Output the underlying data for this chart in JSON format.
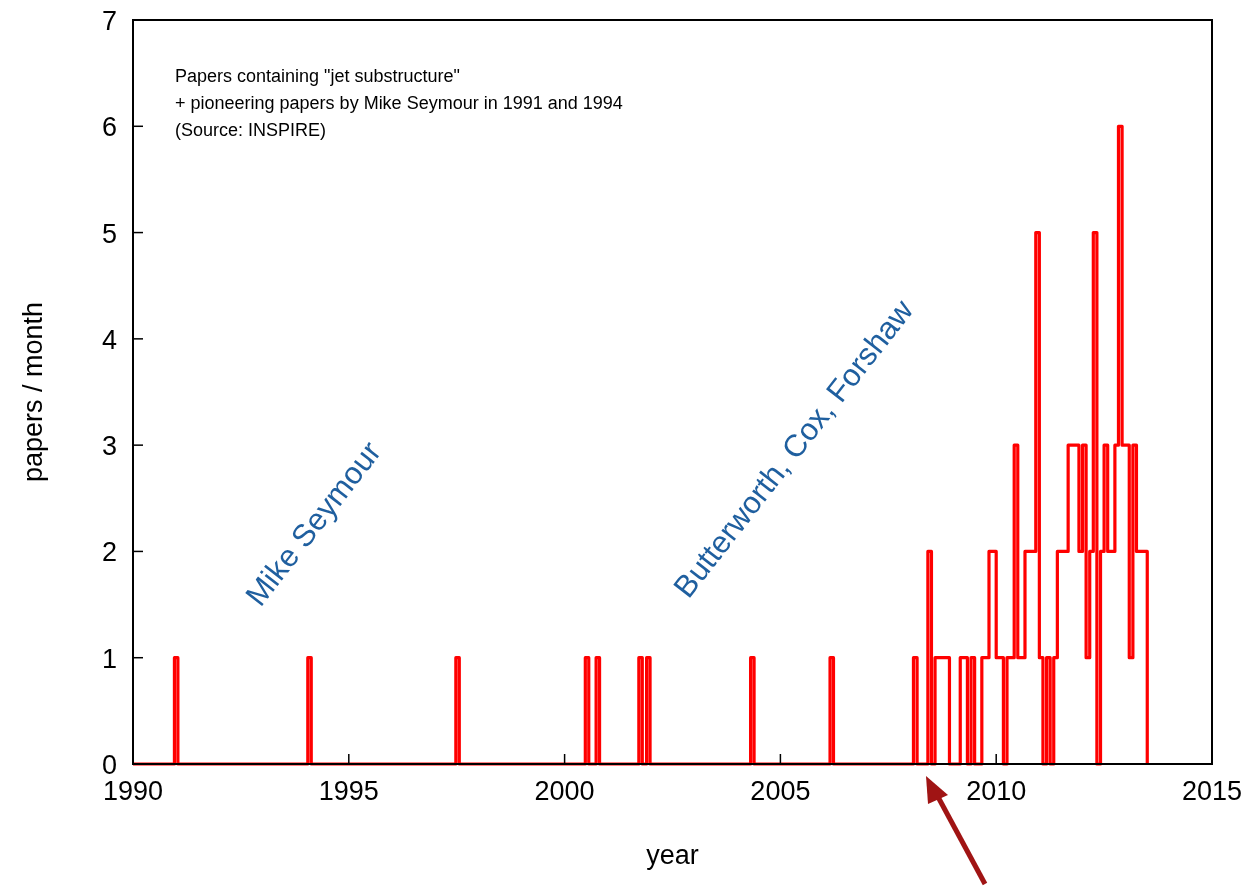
{
  "chart_data": {
    "type": "step",
    "xlabel": "year",
    "ylabel": "papers / month",
    "xlim": [
      1990,
      2015
    ],
    "xticks": [
      1990,
      1995,
      2000,
      2005,
      2010,
      2015
    ],
    "ylim": [
      0,
      7
    ],
    "yticks": [
      0,
      1,
      2,
      3,
      4,
      5,
      6,
      7
    ],
    "annotations": [
      "Papers containing \"jet substructure\"",
      "+ pioneering papers by Mike Seymour in 1991 and 1994",
      "(Source: INSPIRE)",
      "Mike Seymour",
      "Butterworth, Cox, Forshaw"
    ],
    "series": [
      {
        "color": "#ff0000",
        "x": [
          1990,
          1990.96,
          1991.04,
          1994.05,
          1994.13,
          1997.48,
          1997.56,
          2000.48,
          2000.56,
          2000.73,
          2000.81,
          2001.72,
          2001.8,
          2001.9,
          2001.98,
          2004.31,
          2004.39,
          2006.15,
          2006.23,
          2008,
          2008.083,
          2008.167,
          2008.25,
          2008.333,
          2008.417,
          2008.5,
          2008.583,
          2008.667,
          2008.75,
          2008.833,
          2008.917,
          2009,
          2009.083,
          2009.167,
          2009.25,
          2009.333,
          2009.417,
          2009.5,
          2009.583,
          2009.667,
          2009.75,
          2009.833,
          2009.917,
          2010,
          2010.083,
          2010.167,
          2010.25,
          2010.333,
          2010.417,
          2010.5,
          2010.583,
          2010.667,
          2010.75,
          2010.833,
          2010.917,
          2011,
          2011.083,
          2011.167,
          2011.25,
          2011.333,
          2011.417,
          2011.5,
          2011.583,
          2011.667,
          2011.75,
          2011.833,
          2011.917,
          2012,
          2012.083,
          2012.167,
          2012.25,
          2012.333,
          2012.417,
          2012.5,
          2012.583,
          2012.667,
          2012.75,
          2012.833,
          2012.917,
          2013,
          2013.083,
          2013.167,
          2013.25,
          2013.333,
          2013.417,
          2013.5
        ],
        "values": [
          0,
          1,
          0,
          1,
          0,
          1,
          0,
          1,
          0,
          1,
          0,
          1,
          0,
          1,
          0,
          1,
          0,
          1,
          0,
          0,
          1,
          0,
          0,
          0,
          2,
          0,
          1,
          1,
          1,
          1,
          0,
          0,
          0,
          1,
          1,
          0,
          1,
          0,
          0,
          1,
          1,
          2,
          2,
          1,
          1,
          0,
          1,
          1,
          3,
          1,
          1,
          2,
          2,
          2,
          5,
          1,
          0,
          1,
          0,
          1,
          2,
          2,
          2,
          3,
          3,
          3,
          2,
          3,
          1,
          2,
          5,
          0,
          2,
          3,
          2,
          2,
          3,
          6,
          3,
          3,
          1,
          3,
          2,
          2,
          2,
          0
        ]
      }
    ]
  }
}
